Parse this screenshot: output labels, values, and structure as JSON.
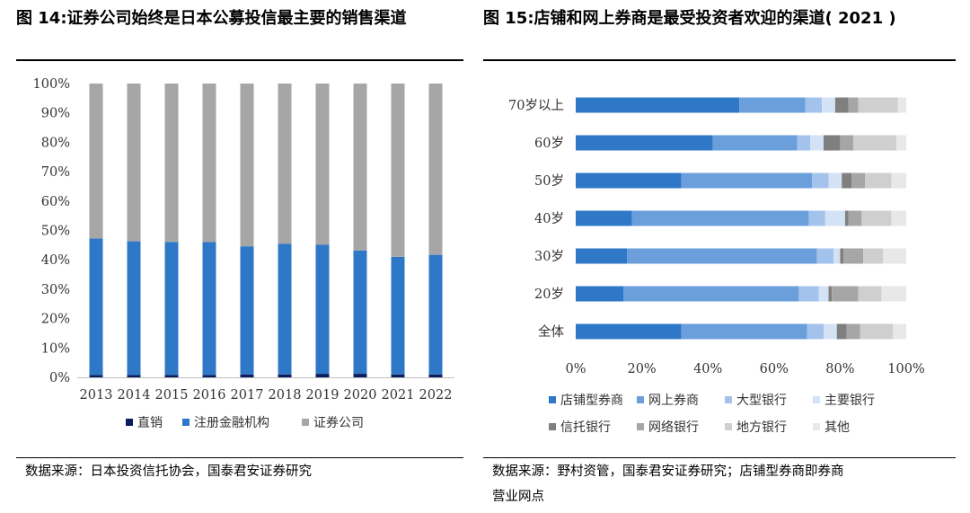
{
  "left": {
    "title": "图 14:证券公司始终是日本公募投信最主要的销售渠道",
    "source": "数据来源：日本投资信托协会，国泰君安证券研究",
    "chart_data": {
      "type": "bar",
      "stacked": true,
      "orientation": "vertical",
      "categories": [
        "2013",
        "2014",
        "2015",
        "2016",
        "2017",
        "2018",
        "2019",
        "2020",
        "2021",
        "2022"
      ],
      "ylim": [
        0,
        100
      ],
      "yticks": [
        "0%",
        "10%",
        "20%",
        "30%",
        "40%",
        "50%",
        "60%",
        "70%",
        "80%",
        "90%",
        "100%"
      ],
      "series": [
        {
          "name": "直销",
          "color": "#0a1e5e",
          "values": [
            0.8,
            0.8,
            0.8,
            0.8,
            1.0,
            1.0,
            1.2,
            1.2,
            1.0,
            1.0
          ]
        },
        {
          "name": "注册金融机构",
          "color": "#2f78c8",
          "values": [
            46.5,
            45.5,
            45.3,
            45.3,
            43.6,
            44.5,
            44.0,
            42.0,
            40.0,
            40.7
          ]
        },
        {
          "name": "证券公司",
          "color": "#a6a6a6",
          "values": [
            52.7,
            53.7,
            53.9,
            53.9,
            55.4,
            54.5,
            54.8,
            56.8,
            59.0,
            58.3
          ]
        }
      ],
      "legend_position": "bottom"
    }
  },
  "right": {
    "title": "图 15:店铺和网上券商是最受投资者欢迎的渠道( 2021 )",
    "source_line1": "数据来源：野村资管，国泰君安证券研究；店铺型券商即券商",
    "source_line2": "营业网点",
    "chart_data": {
      "type": "bar",
      "stacked": true,
      "orientation": "horizontal",
      "categories": [
        "70岁以上",
        "60岁",
        "50岁",
        "40岁",
        "30岁",
        "20岁",
        "全体"
      ],
      "xlim": [
        0,
        100
      ],
      "xticks": [
        "0%",
        "20%",
        "40%",
        "60%",
        "80%",
        "100%"
      ],
      "series": [
        {
          "name": "店铺型券商",
          "color": "#2f78c8",
          "values": [
            49.5,
            41.5,
            32,
            17,
            15.5,
            14.5,
            32
          ]
        },
        {
          "name": "网上券商",
          "color": "#6a9fdc",
          "values": [
            20,
            25.5,
            39.5,
            53.5,
            57.5,
            53,
            38
          ]
        },
        {
          "name": "大型银行",
          "color": "#a4c3ec",
          "values": [
            5,
            4,
            5,
            5,
            5,
            6,
            5
          ]
        },
        {
          "name": "主要银行",
          "color": "#d3e3f5",
          "values": [
            4,
            4,
            4,
            6,
            2,
            3,
            4
          ]
        },
        {
          "name": "信托银行",
          "color": "#7f7f7f",
          "values": [
            4,
            5,
            3,
            1,
            1,
            1,
            3
          ]
        },
        {
          "name": "网络银行",
          "color": "#a6a6a6",
          "values": [
            3,
            4,
            4,
            4,
            6,
            8,
            4
          ]
        },
        {
          "name": "地方银行",
          "color": "#cfcfcf",
          "values": [
            12,
            13,
            8,
            9,
            6,
            7,
            10
          ]
        },
        {
          "name": "其他",
          "color": "#e8e8e8",
          "values": [
            2.5,
            3,
            4.5,
            4.5,
            7,
            7.5,
            4
          ]
        }
      ],
      "legend_position": "bottom"
    }
  }
}
